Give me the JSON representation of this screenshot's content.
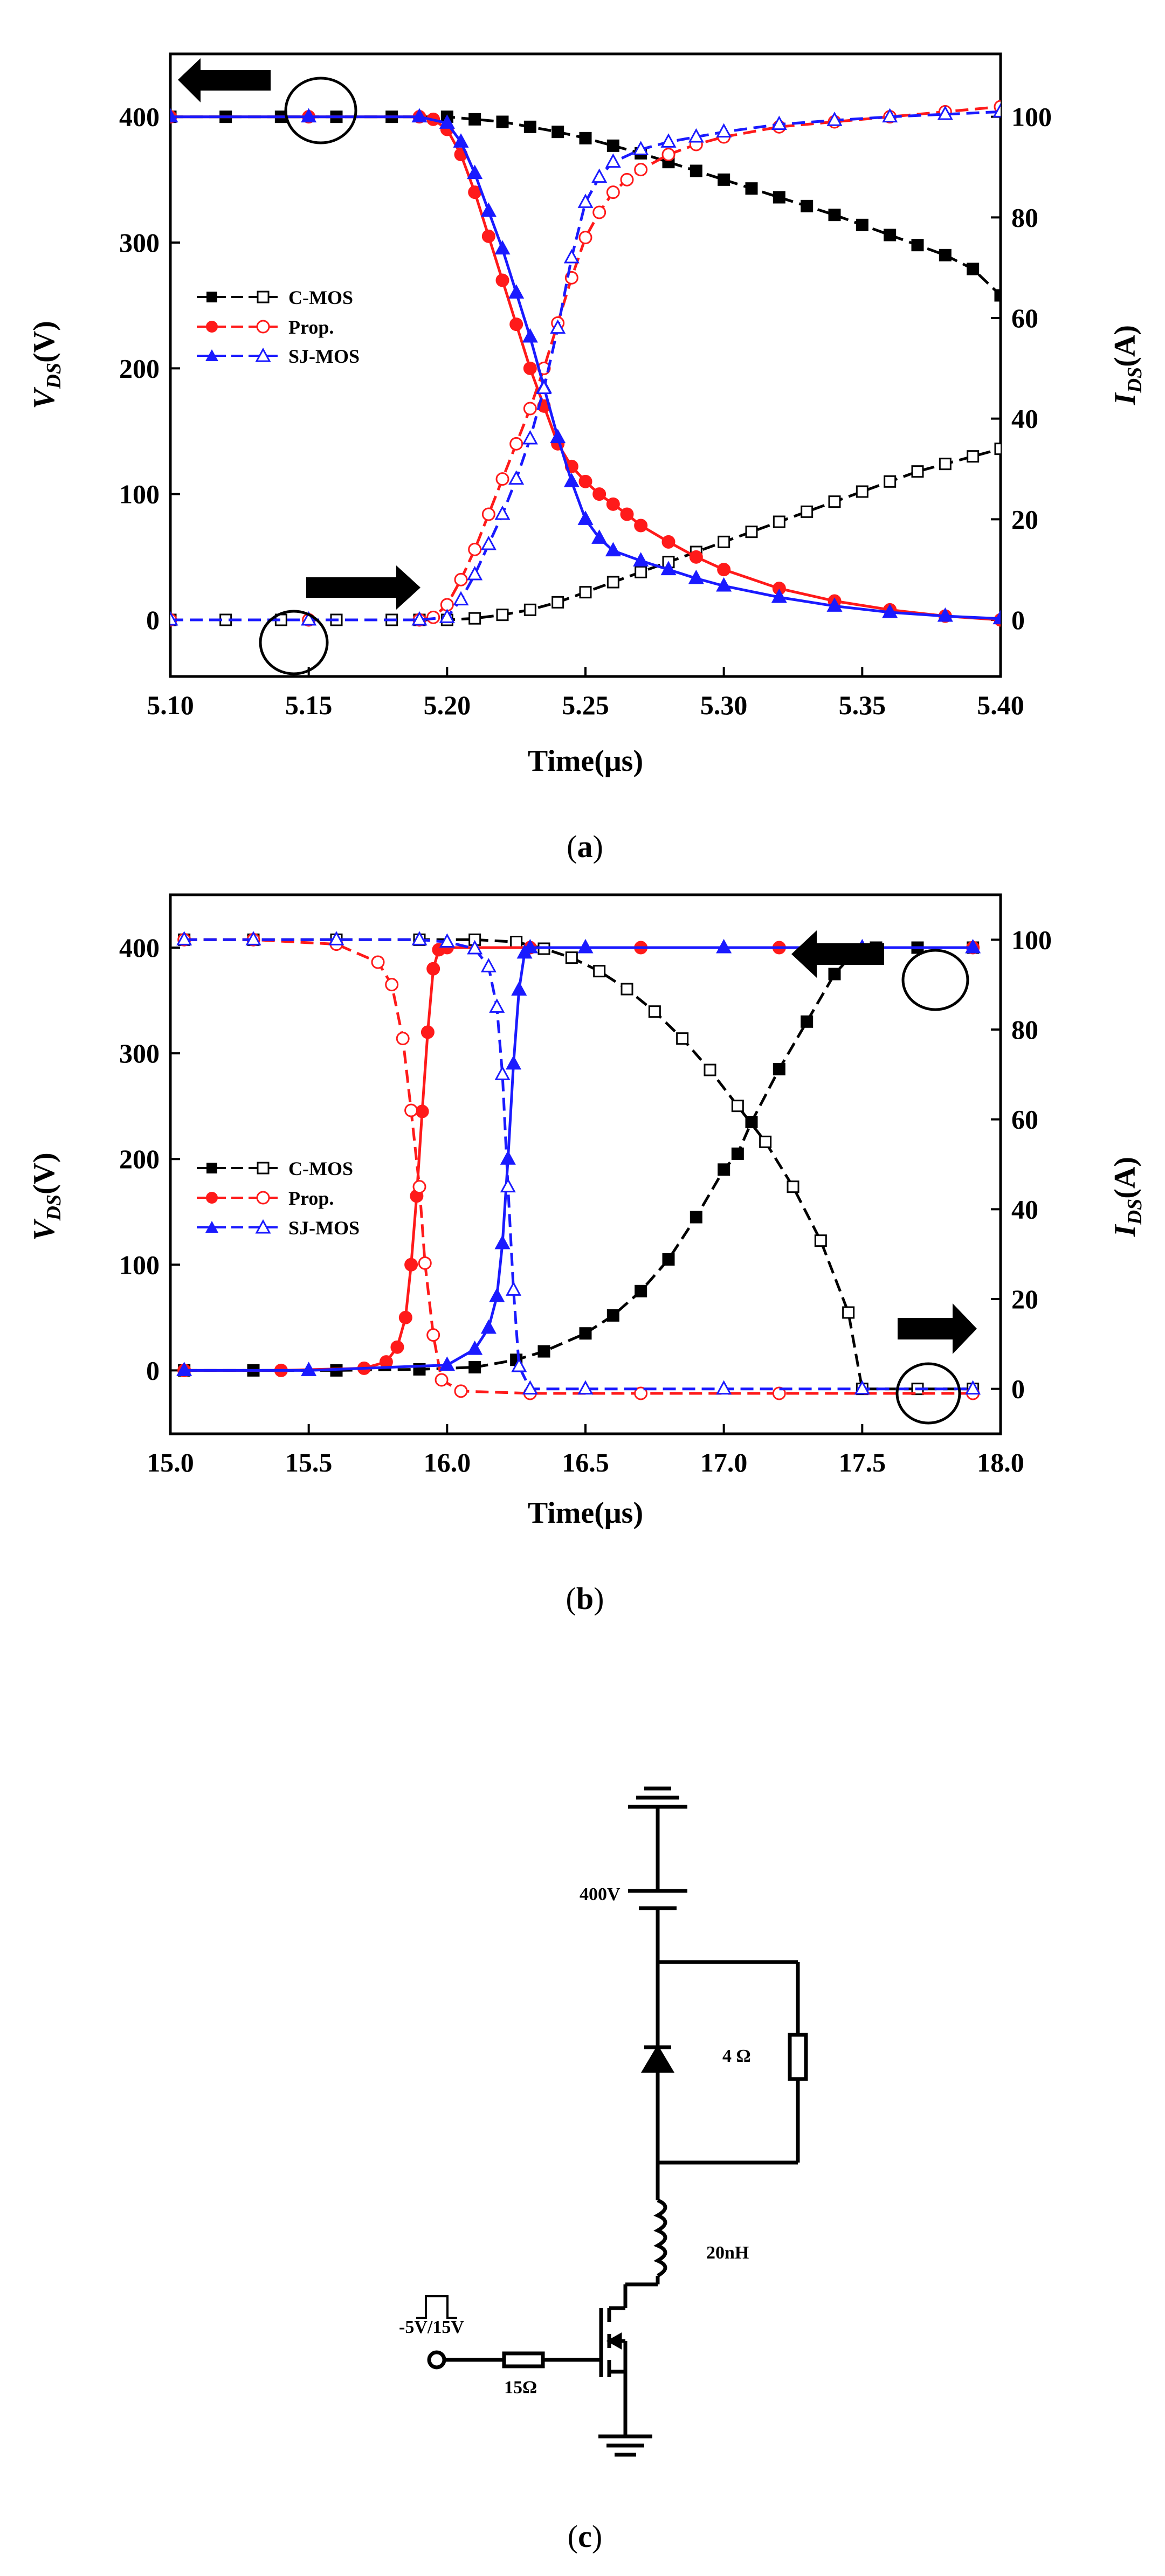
{
  "chart_data": [
    {
      "id": "a",
      "type": "line",
      "caption": "(a)",
      "caption_letter": "a",
      "xlabel": "Time(μs)",
      "ylabel_left": {
        "main": "V",
        "sub": "DS",
        "unit": "(V)"
      },
      "ylabel_right": {
        "main": "I",
        "sub": "DS",
        "unit": "(A)"
      },
      "xlim": [
        5.1,
        5.4
      ],
      "ylim_left": [
        -45,
        450
      ],
      "ylim_right": [
        -11.25,
        112.5
      ],
      "x_ticks": [
        "5.10",
        "5.15",
        "5.20",
        "5.25",
        "5.30",
        "5.35",
        "5.40"
      ],
      "x_tick_values": [
        5.1,
        5.15,
        5.2,
        5.25,
        5.3,
        5.35,
        5.4
      ],
      "y_left_ticks": [
        "0",
        "100",
        "200",
        "300",
        "400"
      ],
      "y_left_tick_values": [
        0,
        100,
        200,
        300,
        400
      ],
      "y_right_ticks": [
        "0",
        "20",
        "40",
        "60",
        "80",
        "100"
      ],
      "y_right_tick_values": [
        0,
        20,
        40,
        60,
        80,
        100
      ],
      "legend": [
        "C-MOS",
        "Prop.",
        "SJ-MOS"
      ],
      "legend_position": "middle-left",
      "arrows": [
        {
          "direction": "left",
          "points_to": "V_DS axis",
          "at": [
            5.115,
            420
          ]
        },
        {
          "direction": "right",
          "points_to": "I_DS axis",
          "at": [
            5.18,
            -5
          ]
        }
      ],
      "circles": [
        {
          "at": [
            5.158,
            398
          ],
          "meaning": "V_DS marker"
        },
        {
          "at": [
            5.147,
            -13
          ],
          "meaning": "I_DS marker"
        }
      ],
      "series": [
        {
          "name": "C-MOS",
          "quantity": "V_DS",
          "axis": "left",
          "color": "#000000",
          "marker": "square",
          "filled": true,
          "dash": true,
          "x": [
            5.1,
            5.12,
            5.14,
            5.16,
            5.18,
            5.2,
            5.21,
            5.22,
            5.23,
            5.24,
            5.25,
            5.26,
            5.27,
            5.28,
            5.29,
            5.3,
            5.31,
            5.32,
            5.33,
            5.34,
            5.35,
            5.36,
            5.37,
            5.38,
            5.39,
            5.4
          ],
          "y": [
            400,
            400,
            400,
            400,
            400,
            400,
            398,
            396,
            392,
            388,
            383,
            377,
            371,
            364,
            357,
            350,
            343,
            336,
            329,
            322,
            314,
            306,
            298,
            290,
            279,
            258
          ]
        },
        {
          "name": "C-MOS",
          "quantity": "I_DS",
          "axis": "right",
          "color": "#000000",
          "marker": "square",
          "filled": false,
          "dash": true,
          "x": [
            5.1,
            5.12,
            5.14,
            5.16,
            5.18,
            5.19,
            5.2,
            5.21,
            5.22,
            5.23,
            5.24,
            5.25,
            5.26,
            5.27,
            5.28,
            5.29,
            5.3,
            5.31,
            5.32,
            5.33,
            5.34,
            5.35,
            5.36,
            5.37,
            5.38,
            5.39,
            5.4
          ],
          "y": [
            0,
            0,
            0,
            0,
            0,
            0,
            0,
            0.3,
            1,
            2,
            3.5,
            5.5,
            7.5,
            9.5,
            11.5,
            13.5,
            15.5,
            17.5,
            19.5,
            21.5,
            23.5,
            25.5,
            27.5,
            29.5,
            31,
            32.5,
            34
          ]
        },
        {
          "name": "Prop.",
          "quantity": "V_DS",
          "axis": "left",
          "color": "#ff1a1a",
          "marker": "circle",
          "filled": true,
          "dash": false,
          "x": [
            5.1,
            5.15,
            5.19,
            5.195,
            5.2,
            5.205,
            5.21,
            5.215,
            5.22,
            5.225,
            5.23,
            5.235,
            5.24,
            5.245,
            5.25,
            5.255,
            5.26,
            5.265,
            5.27,
            5.28,
            5.29,
            5.3,
            5.32,
            5.34,
            5.36,
            5.38,
            5.4
          ],
          "y": [
            400,
            400,
            400,
            398,
            390,
            370,
            340,
            305,
            270,
            235,
            200,
            170,
            140,
            122,
            110,
            100,
            92,
            84,
            75,
            62,
            50,
            40,
            25,
            15,
            8,
            3,
            0
          ]
        },
        {
          "name": "Prop.",
          "quantity": "I_DS",
          "axis": "right",
          "color": "#ff1a1a",
          "marker": "circle",
          "filled": false,
          "dash": true,
          "x": [
            5.1,
            5.15,
            5.19,
            5.195,
            5.2,
            5.205,
            5.21,
            5.215,
            5.22,
            5.225,
            5.23,
            5.235,
            5.24,
            5.245,
            5.25,
            5.255,
            5.26,
            5.265,
            5.27,
            5.28,
            5.29,
            5.3,
            5.32,
            5.34,
            5.36,
            5.38,
            5.4
          ],
          "y": [
            0,
            0,
            0,
            0.5,
            3,
            8,
            14,
            21,
            28,
            35,
            42,
            50,
            59,
            68,
            76,
            81,
            85,
            87.5,
            89.5,
            92.5,
            94.5,
            96,
            98,
            99,
            100,
            101,
            102
          ]
        },
        {
          "name": "SJ-MOS",
          "quantity": "V_DS",
          "axis": "left",
          "color": "#1a1aff",
          "marker": "triangle",
          "filled": true,
          "dash": false,
          "x": [
            5.1,
            5.15,
            5.19,
            5.2,
            5.205,
            5.21,
            5.215,
            5.22,
            5.225,
            5.23,
            5.235,
            5.24,
            5.245,
            5.25,
            5.255,
            5.26,
            5.27,
            5.28,
            5.29,
            5.3,
            5.32,
            5.34,
            5.36,
            5.38,
            5.4
          ],
          "y": [
            400,
            400,
            400,
            395,
            380,
            355,
            325,
            295,
            260,
            225,
            185,
            145,
            110,
            80,
            65,
            55,
            47,
            40,
            33,
            27,
            18,
            11,
            6,
            3,
            1
          ]
        },
        {
          "name": "SJ-MOS",
          "quantity": "I_DS",
          "axis": "right",
          "color": "#1a1aff",
          "marker": "triangle",
          "filled": false,
          "dash": true,
          "x": [
            5.1,
            5.15,
            5.19,
            5.2,
            5.205,
            5.21,
            5.215,
            5.22,
            5.225,
            5.23,
            5.235,
            5.24,
            5.245,
            5.25,
            5.255,
            5.26,
            5.27,
            5.28,
            5.29,
            5.3,
            5.32,
            5.34,
            5.36,
            5.38,
            5.4
          ],
          "y": [
            0,
            0,
            0,
            0.5,
            4,
            9,
            15,
            21,
            28,
            36,
            46,
            58,
            72,
            83,
            88,
            91,
            93.5,
            95,
            96,
            97,
            98.5,
            99.3,
            100,
            100.5,
            101
          ]
        }
      ]
    },
    {
      "id": "b",
      "type": "line",
      "caption": "(b)",
      "caption_letter": "b",
      "xlabel": "Time(μs)",
      "ylabel_left": {
        "main": "V",
        "sub": "DS",
        "unit": "(V)"
      },
      "ylabel_right": {
        "main": "I",
        "sub": "DS",
        "unit": "(A)"
      },
      "xlim": [
        15.0,
        18.0
      ],
      "ylim_left": [
        -60,
        450
      ],
      "ylim_right": [
        -10,
        110
      ],
      "x_ticks": [
        "15.0",
        "15.5",
        "16.0",
        "16.5",
        "17.0",
        "17.5",
        "18.0"
      ],
      "x_tick_values": [
        15.0,
        15.5,
        16.0,
        16.5,
        17.0,
        17.5,
        18.0
      ],
      "y_left_ticks": [
        "0",
        "100",
        "200",
        "300",
        "400"
      ],
      "y_left_tick_values": [
        0,
        100,
        200,
        300,
        400
      ],
      "y_right_ticks": [
        "0",
        "20",
        "40",
        "60",
        "80",
        "100"
      ],
      "y_right_tick_values": [
        0,
        20,
        40,
        60,
        80,
        100
      ],
      "legend": [
        "C-MOS",
        "Prop.",
        "SJ-MOS"
      ],
      "legend_position": "middle-left",
      "arrows": [
        {
          "direction": "left",
          "points_to": "V_DS axis",
          "at": [
            17.23,
            438
          ]
        },
        {
          "direction": "right",
          "points_to": "I_DS axis",
          "at": [
            17.9,
            7
          ]
        }
      ],
      "circles": [
        {
          "at": [
            17.77,
            398
          ],
          "meaning": "V_DS marker"
        },
        {
          "at": [
            17.73,
            -1
          ],
          "meaning": "I_DS marker"
        }
      ],
      "series": [
        {
          "name": "C-MOS",
          "quantity": "V_DS",
          "axis": "left",
          "color": "#000000",
          "marker": "square",
          "filled": true,
          "dash": true,
          "x": [
            15.05,
            15.3,
            15.6,
            15.9,
            16.1,
            16.25,
            16.35,
            16.5,
            16.6,
            16.7,
            16.8,
            16.9,
            17.0,
            17.05,
            17.1,
            17.2,
            17.3,
            17.4,
            17.48,
            17.55,
            17.7,
            17.9
          ],
          "y": [
            0,
            0,
            0,
            1,
            3,
            10,
            18,
            35,
            52,
            75,
            105,
            145,
            190,
            205,
            235,
            285,
            330,
            375,
            398,
            400,
            400,
            400
          ]
        },
        {
          "name": "C-MOS",
          "quantity": "I_DS",
          "axis": "right",
          "color": "#000000",
          "marker": "square",
          "filled": false,
          "dash": true,
          "x": [
            15.05,
            15.3,
            15.6,
            15.9,
            16.1,
            16.25,
            16.35,
            16.45,
            16.55,
            16.65,
            16.75,
            16.85,
            16.95,
            17.05,
            17.15,
            17.25,
            17.35,
            17.45,
            17.5,
            17.7,
            17.9
          ],
          "y": [
            100,
            100,
            100,
            100,
            100,
            99.5,
            98,
            96,
            93,
            89,
            84,
            78,
            71,
            63,
            55,
            45,
            33,
            17,
            0,
            0,
            0
          ]
        },
        {
          "name": "Prop.",
          "quantity": "V_DS",
          "axis": "left",
          "color": "#ff1a1a",
          "marker": "circle",
          "filled": true,
          "dash": false,
          "x": [
            15.05,
            15.4,
            15.7,
            15.78,
            15.82,
            15.85,
            15.87,
            15.89,
            15.91,
            15.93,
            15.95,
            15.97,
            16.0,
            16.3,
            16.7,
            17.2,
            17.9
          ],
          "y": [
            0,
            0,
            2,
            8,
            22,
            50,
            100,
            165,
            245,
            320,
            380,
            398,
            400,
            400,
            400,
            400,
            400
          ]
        },
        {
          "name": "Prop.",
          "quantity": "I_DS",
          "axis": "right",
          "color": "#ff1a1a",
          "marker": "circle",
          "filled": false,
          "dash": true,
          "x": [
            15.05,
            15.3,
            15.6,
            15.75,
            15.8,
            15.84,
            15.87,
            15.9,
            15.92,
            15.95,
            15.98,
            16.05,
            16.3,
            16.7,
            17.2,
            17.9
          ],
          "y": [
            100,
            100,
            99,
            95,
            90,
            78,
            62,
            45,
            28,
            12,
            2,
            -0.5,
            -1,
            -1,
            -1,
            -1
          ]
        },
        {
          "name": "SJ-MOS",
          "quantity": "V_DS",
          "axis": "left",
          "color": "#1a1aff",
          "marker": "triangle",
          "filled": true,
          "dash": false,
          "x": [
            15.05,
            15.5,
            16.0,
            16.1,
            16.15,
            16.18,
            16.2,
            16.22,
            16.24,
            16.26,
            16.28,
            16.3,
            16.5,
            17.0,
            17.5,
            17.9
          ],
          "y": [
            0,
            0,
            5,
            20,
            40,
            70,
            120,
            200,
            290,
            360,
            395,
            400,
            400,
            400,
            400,
            400
          ]
        },
        {
          "name": "SJ-MOS",
          "quantity": "I_DS",
          "axis": "right",
          "color": "#1a1aff",
          "marker": "triangle",
          "filled": false,
          "dash": true,
          "x": [
            15.05,
            15.3,
            15.6,
            15.9,
            16.0,
            16.1,
            16.15,
            16.18,
            16.2,
            16.22,
            16.24,
            16.26,
            16.3,
            16.5,
            17.0,
            17.5,
            17.9
          ],
          "y": [
            100,
            100,
            100,
            100,
            99.5,
            98,
            94,
            85,
            70,
            45,
            22,
            5,
            0,
            0,
            0,
            0,
            0
          ]
        }
      ]
    }
  ],
  "circuit": {
    "caption": "(c)",
    "caption_letter": "c",
    "supply_label": "400V",
    "resistor_parallel_label": "4 Ω",
    "inductor_label": "20nH",
    "gate_resistor_label": "15Ω",
    "gate_signal_label": "-5V/15V"
  }
}
